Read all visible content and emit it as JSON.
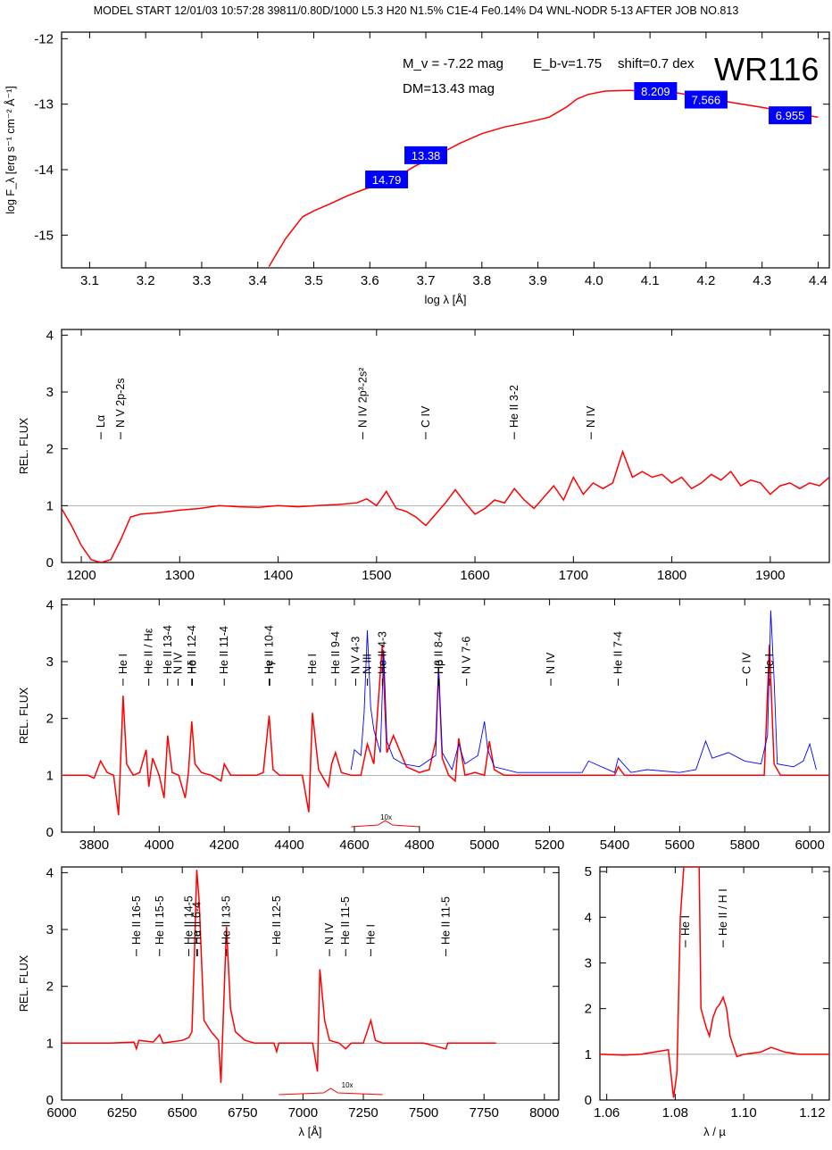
{
  "header": "MODEL START   12/01/03  10:57:28   39811/0.80D/1000  L5.3  H20  N1.5%  C1E-4  Fe0.14%  D4  WNL-NODR 5-13     AFTER JOB NO.813",
  "colors": {
    "model": "#ff0000",
    "observed": "#0000ff",
    "box": "#0000ff",
    "box_text": "#ffffff",
    "reference": "#999999"
  },
  "chart_data": [
    {
      "id": "sed",
      "type": "line",
      "xlabel": "log λ [Å]",
      "ylabel": "log F_λ [erg s⁻¹ cm⁻² Å⁻¹]",
      "xlim": [
        3.05,
        4.42
      ],
      "ylim": [
        -15.5,
        -11.9
      ],
      "xticks": [
        "3.1",
        "3.2",
        "3.3",
        "3.4",
        "3.5",
        "3.6",
        "3.7",
        "3.8",
        "3.9",
        "4.0",
        "4.1",
        "4.2",
        "4.3",
        "4.4"
      ],
      "yticks": [
        "-12",
        "-13",
        "-14",
        "-15"
      ],
      "annotations": {
        "mv": "M_v = -7.22 mag",
        "ebv": "E_b-v=1.75",
        "shift": "shift=0.7 dex",
        "dm": "DM=13.43 mag",
        "star": "WR116"
      },
      "photometry": [
        {
          "x": 3.63,
          "y": -14.15,
          "label": "14.79"
        },
        {
          "x": 3.7,
          "y": -13.78,
          "label": "13.38"
        },
        {
          "x": 4.11,
          "y": -12.8,
          "label": "8.209"
        },
        {
          "x": 4.2,
          "y": -12.93,
          "label": "7.566"
        },
        {
          "x": 4.35,
          "y": -13.17,
          "label": "6.955"
        }
      ],
      "series": [
        {
          "color": "#ff0000",
          "x": [
            3.42,
            3.45,
            3.48,
            3.5,
            3.53,
            3.56,
            3.59,
            3.62,
            3.65,
            3.68,
            3.72,
            3.76,
            3.8,
            3.84,
            3.88,
            3.92,
            3.95,
            3.97,
            3.99,
            4.02,
            4.06,
            4.1,
            4.15,
            4.2,
            4.25,
            4.3,
            4.35,
            4.4
          ],
          "y": [
            -15.48,
            -15.05,
            -14.72,
            -14.63,
            -14.52,
            -14.4,
            -14.3,
            -14.22,
            -14.1,
            -13.95,
            -13.78,
            -13.6,
            -13.45,
            -13.35,
            -13.28,
            -13.2,
            -13.05,
            -12.92,
            -12.85,
            -12.8,
            -12.79,
            -12.8,
            -12.83,
            -12.9,
            -12.98,
            -13.05,
            -13.13,
            -13.2
          ]
        }
      ]
    },
    {
      "id": "uv",
      "type": "line",
      "xlabel": "",
      "ylabel": "REL. FLUX",
      "xlim": [
        1180,
        1960
      ],
      "ylim": [
        0,
        4.1
      ],
      "xticks": [
        "1200",
        "1300",
        "1400",
        "1500",
        "1600",
        "1700",
        "1800",
        "1900"
      ],
      "yticks": [
        "0",
        "1",
        "2",
        "3",
        "4"
      ],
      "lines": [
        {
          "x": 1220,
          "label": "Lα"
        },
        {
          "x": 1240,
          "label": "N V 2p-2s"
        },
        {
          "x": 1486,
          "label": "N IV 2p³-2s²"
        },
        {
          "x": 1550,
          "label": "C IV"
        },
        {
          "x": 1640,
          "label": "He II 3-2"
        },
        {
          "x": 1718,
          "label": "N IV"
        }
      ],
      "series": [
        {
          "color": "#ff0000",
          "x": [
            1180,
            1190,
            1200,
            1210,
            1220,
            1230,
            1240,
            1250,
            1260,
            1280,
            1300,
            1320,
            1340,
            1360,
            1380,
            1400,
            1420,
            1440,
            1460,
            1480,
            1490,
            1500,
            1510,
            1520,
            1530,
            1540,
            1550,
            1560,
            1570,
            1580,
            1590,
            1600,
            1610,
            1620,
            1630,
            1640,
            1650,
            1660,
            1670,
            1680,
            1690,
            1700,
            1710,
            1720,
            1730,
            1740,
            1750,
            1760,
            1770,
            1780,
            1790,
            1800,
            1810,
            1820,
            1830,
            1840,
            1850,
            1860,
            1870,
            1880,
            1890,
            1900,
            1910,
            1920,
            1930,
            1940,
            1950,
            1960
          ],
          "y": [
            0.95,
            0.65,
            0.3,
            0.05,
            0.0,
            0.05,
            0.4,
            0.8,
            0.85,
            0.88,
            0.92,
            0.95,
            1.0,
            0.98,
            0.97,
            1.0,
            0.98,
            1.0,
            1.02,
            1.05,
            1.12,
            1.0,
            1.25,
            0.95,
            0.9,
            0.8,
            0.65,
            0.85,
            1.05,
            1.28,
            1.05,
            0.85,
            0.95,
            1.1,
            1.05,
            1.3,
            1.1,
            0.95,
            1.15,
            1.35,
            1.1,
            1.5,
            1.2,
            1.4,
            1.3,
            1.4,
            1.95,
            1.5,
            1.6,
            1.5,
            1.55,
            1.4,
            1.5,
            1.3,
            1.4,
            1.55,
            1.45,
            1.6,
            1.35,
            1.45,
            1.4,
            1.2,
            1.35,
            1.4,
            1.3,
            1.4,
            1.35,
            1.5
          ]
        }
      ]
    },
    {
      "id": "optical",
      "type": "line",
      "xlabel": "",
      "ylabel": "REL. FLUX",
      "xlim": [
        3700,
        6060
      ],
      "ylim": [
        0,
        4.1
      ],
      "xticks": [
        "3800",
        "4000",
        "4200",
        "4400",
        "4600",
        "4800",
        "5000",
        "5200",
        "5400",
        "5600",
        "5800",
        "6000"
      ],
      "yticks": [
        "0",
        "1",
        "2",
        "3",
        "4"
      ],
      "inset_label": "10x",
      "lines": [
        {
          "x": 3889,
          "label": "He I"
        },
        {
          "x": 3968,
          "label": "He II / Hε"
        },
        {
          "x": 4026,
          "label": "He II 13-4"
        },
        {
          "x": 4058,
          "label": "N IV"
        },
        {
          "x": 4100,
          "label": "He II 12-4"
        },
        {
          "x": 4102,
          "label": "Hδ"
        },
        {
          "x": 4200,
          "label": "He II 11-4"
        },
        {
          "x": 4338,
          "label": "He II 10-4"
        },
        {
          "x": 4340,
          "label": "Hγ"
        },
        {
          "x": 4471,
          "label": "He I"
        },
        {
          "x": 4542,
          "label": "He II 9-4"
        },
        {
          "x": 4604,
          "label": "N V 4-3"
        },
        {
          "x": 4640,
          "label": "N III"
        },
        {
          "x": 4686,
          "label": "He II 4-3"
        },
        {
          "x": 4859,
          "label": "He II 8-4"
        },
        {
          "x": 4861,
          "label": "Hβ"
        },
        {
          "x": 4945,
          "label": "N V 7-6"
        },
        {
          "x": 5204,
          "label": "N IV"
        },
        {
          "x": 5411,
          "label": "He II 7-4"
        },
        {
          "x": 5806,
          "label": "C IV"
        },
        {
          "x": 5876,
          "label": "He I"
        }
      ],
      "series": [
        {
          "color": "#ff0000",
          "x": [
            3700,
            3780,
            3800,
            3820,
            3840,
            3860,
            3875,
            3889,
            3900,
            3920,
            3940,
            3960,
            3968,
            3980,
            4000,
            4015,
            4026,
            4040,
            4060,
            4080,
            4090,
            4100,
            4110,
            4130,
            4160,
            4190,
            4200,
            4220,
            4260,
            4300,
            4320,
            4338,
            4350,
            4370,
            4400,
            4440,
            4460,
            4471,
            4490,
            4520,
            4530,
            4542,
            4560,
            4590,
            4620,
            4640,
            4660,
            4686,
            4700,
            4720,
            4760,
            4800,
            4830,
            4850,
            4859,
            4870,
            4890,
            4910,
            4921,
            4940,
            4970,
            5000,
            5015,
            5030,
            5060,
            5100,
            5200,
            5300,
            5400,
            5411,
            5430,
            5500,
            5600,
            5700,
            5800,
            5860,
            5876,
            5890,
            5910,
            5950,
            6000,
            6060
          ],
          "y": [
            1.0,
            1.0,
            0.95,
            1.25,
            1.05,
            1.0,
            0.3,
            2.4,
            1.2,
            1.0,
            1.05,
            1.45,
            0.8,
            1.3,
            1.0,
            0.6,
            1.7,
            1.05,
            1.0,
            0.6,
            1.05,
            1.95,
            1.2,
            1.05,
            1.0,
            0.9,
            1.2,
            1.0,
            1.0,
            1.0,
            1.05,
            2.05,
            1.1,
            1.0,
            1.0,
            1.0,
            0.35,
            2.1,
            1.1,
            0.8,
            1.2,
            1.4,
            1.05,
            1.0,
            1.0,
            1.55,
            1.2,
            3.3,
            1.4,
            1.7,
            1.15,
            1.05,
            1.1,
            1.6,
            2.85,
            1.3,
            1.0,
            0.9,
            1.65,
            1.0,
            1.05,
            1.0,
            1.6,
            1.1,
            1.0,
            1.0,
            1.0,
            1.0,
            1.0,
            1.15,
            1.0,
            1.0,
            1.0,
            1.0,
            1.0,
            1.0,
            3.3,
            1.2,
            1.0,
            1.0,
            1.0,
            1.0
          ]
        },
        {
          "color": "#0000ff",
          "x": [
            4590,
            4600,
            4620,
            4630,
            4640,
            4650,
            4660,
            4680,
            4690,
            4700,
            4720,
            4750,
            4800,
            4850,
            4859,
            4870,
            4900,
            4921,
            4940,
            4980,
            5000,
            5010,
            5030,
            5100,
            5200,
            5300,
            5320,
            5400,
            5411,
            5450,
            5500,
            5600,
            5650,
            5680,
            5700,
            5750,
            5800,
            5850,
            5870,
            5880,
            5890,
            5900,
            5950,
            5980,
            6000,
            6020
          ],
          "y": [
            1.1,
            1.45,
            1.35,
            2.1,
            3.55,
            2.2,
            1.8,
            1.4,
            3.2,
            1.6,
            1.3,
            1.2,
            1.15,
            1.35,
            2.9,
            1.4,
            1.1,
            1.55,
            1.2,
            1.35,
            1.95,
            1.45,
            1.15,
            1.05,
            1.05,
            1.05,
            1.25,
            1.05,
            1.3,
            1.05,
            1.1,
            1.05,
            1.1,
            1.6,
            1.3,
            1.4,
            1.25,
            1.2,
            1.7,
            3.9,
            2.7,
            1.2,
            1.15,
            1.25,
            1.55,
            1.1
          ]
        }
      ]
    },
    {
      "id": "red",
      "type": "line",
      "xlabel": "λ [Å]",
      "ylabel": "REL. FLUX",
      "xlim": [
        6000,
        8060
      ],
      "ylim": [
        0,
        4.1
      ],
      "xticks": [
        "6000",
        "6250",
        "6500",
        "6750",
        "7000",
        "7250",
        "7500",
        "7750",
        "8000"
      ],
      "yticks": [
        "0",
        "1",
        "2",
        "3",
        "4"
      ],
      "inset_label": "10x",
      "lines": [
        {
          "x": 6310,
          "label": "He II 16-5"
        },
        {
          "x": 6406,
          "label": "He II 15-5"
        },
        {
          "x": 6527,
          "label": "He II 14-5"
        },
        {
          "x": 6560,
          "label": "He II 6-4"
        },
        {
          "x": 6563,
          "label": "Hα"
        },
        {
          "x": 6683,
          "label": "He II 13-5"
        },
        {
          "x": 6891,
          "label": "He II 12-5"
        },
        {
          "x": 7110,
          "label": "N IV"
        },
        {
          "x": 7177,
          "label": "He II 11-5"
        },
        {
          "x": 7281,
          "label": "He I"
        },
        {
          "x": 7592,
          "label": "He II 11-5"
        }
      ],
      "series": [
        {
          "color": "#ff0000",
          "x": [
            6000,
            6200,
            6300,
            6310,
            6320,
            6380,
            6406,
            6420,
            6500,
            6527,
            6540,
            6550,
            6560,
            6570,
            6590,
            6620,
            6650,
            6660,
            6683,
            6700,
            6720,
            6760,
            6800,
            6880,
            6891,
            6900,
            6950,
            7000,
            7040,
            7060,
            7070,
            7090,
            7110,
            7150,
            7177,
            7200,
            7250,
            7281,
            7300,
            7330,
            7400,
            7500,
            7592,
            7600,
            7700,
            7800
          ],
          "y": [
            1.0,
            1.0,
            1.02,
            0.9,
            1.05,
            1.02,
            1.15,
            1.0,
            1.05,
            1.1,
            1.2,
            2.5,
            4.05,
            3.5,
            1.4,
            1.2,
            1.05,
            0.3,
            3.05,
            1.6,
            1.2,
            1.05,
            1.0,
            1.0,
            0.85,
            1.0,
            1.0,
            1.0,
            1.0,
            0.5,
            2.3,
            1.4,
            1.05,
            1.0,
            0.9,
            1.0,
            1.0,
            1.4,
            1.05,
            1.0,
            1.0,
            1.0,
            0.9,
            1.0,
            1.0,
            1.0
          ]
        }
      ]
    },
    {
      "id": "ir",
      "type": "line",
      "xlabel": "λ / µ",
      "ylabel": "",
      "xlim": [
        1.058,
        1.125
      ],
      "ylim": [
        0,
        5.1
      ],
      "xticks": [
        "1.06",
        "1.08",
        "1.10",
        "1.12"
      ],
      "yticks": [
        "0",
        "1",
        "2",
        "3",
        "4",
        "5"
      ],
      "lines": [
        {
          "x": 1.083,
          "label": "He I"
        },
        {
          "x": 1.094,
          "label": "He II / H I"
        }
      ],
      "series": [
        {
          "color": "#ff0000",
          "x": [
            1.058,
            1.065,
            1.07,
            1.074,
            1.078,
            1.0795,
            1.0805,
            1.0815,
            1.0825,
            1.083,
            1.085,
            1.087,
            1.0875,
            1.089,
            1.09,
            1.091,
            1.092,
            1.093,
            1.094,
            1.095,
            1.096,
            1.098,
            1.1,
            1.105,
            1.108,
            1.112,
            1.116,
            1.12,
            1.125
          ],
          "y": [
            1.0,
            0.98,
            1.0,
            1.05,
            1.1,
            0.05,
            0.6,
            4.0,
            5.1,
            5.1,
            5.1,
            5.1,
            2.0,
            1.6,
            1.4,
            1.8,
            2.0,
            2.1,
            2.25,
            2.0,
            1.4,
            0.95,
            1.0,
            1.05,
            1.15,
            1.05,
            1.0,
            1.0,
            1.0
          ]
        }
      ]
    }
  ]
}
